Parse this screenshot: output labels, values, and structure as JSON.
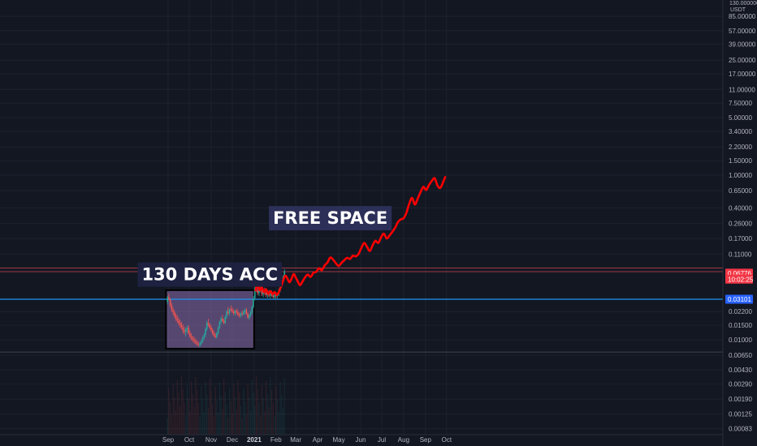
{
  "chart_data": {
    "type": "line",
    "title": "",
    "xlabel": "",
    "ylabel": "",
    "y_scale": "log",
    "ylim": [
      0.00075,
      130
    ],
    "grid": true,
    "currency": "USDT",
    "top_price_label": "130.000000",
    "x_ticks": [
      {
        "label": "Sep",
        "x": "2020-09-01"
      },
      {
        "label": "Oct",
        "x": "2020-10-01"
      },
      {
        "label": "Nov",
        "x": "2020-11-01"
      },
      {
        "label": "Dec",
        "x": "2020-12-01"
      },
      {
        "label": "2021",
        "x": "2021-01-01",
        "emphasis": true
      },
      {
        "label": "Feb",
        "x": "2021-02-01"
      },
      {
        "label": "Mar",
        "x": "2021-03-01"
      },
      {
        "label": "Apr",
        "x": "2021-04-01"
      },
      {
        "label": "May",
        "x": "2021-05-01"
      },
      {
        "label": "Jun",
        "x": "2021-06-01"
      },
      {
        "label": "Jul",
        "x": "2021-07-01"
      },
      {
        "label": "Aug",
        "x": "2021-08-01"
      },
      {
        "label": "Sep",
        "x": "2021-09-01"
      },
      {
        "label": "Oct",
        "x": "2021-10-01"
      }
    ],
    "y_ticks": [
      {
        "label": "85.00000",
        "value": 85
      },
      {
        "label": "57.00000",
        "value": 57
      },
      {
        "label": "39.00000",
        "value": 39
      },
      {
        "label": "25.00000",
        "value": 25
      },
      {
        "label": "17.00000",
        "value": 17
      },
      {
        "label": "11.00000",
        "value": 11
      },
      {
        "label": "7.50000",
        "value": 7.5
      },
      {
        "label": "5.00000",
        "value": 5
      },
      {
        "label": "3.40000",
        "value": 3.4
      },
      {
        "label": "2.20000",
        "value": 2.2
      },
      {
        "label": "1.50000",
        "value": 1.5
      },
      {
        "label": "1.00000",
        "value": 1.0
      },
      {
        "label": "0.65000",
        "value": 0.65
      },
      {
        "label": "0.40000",
        "value": 0.4
      },
      {
        "label": "0.26000",
        "value": 0.26
      },
      {
        "label": "0.17000",
        "value": 0.17
      },
      {
        "label": "0.11000",
        "value": 0.11
      },
      {
        "label": "0.02200",
        "value": 0.022
      },
      {
        "label": "0.01500",
        "value": 0.015
      },
      {
        "label": "0.01000",
        "value": 0.01
      },
      {
        "label": "0.00650",
        "value": 0.0065
      },
      {
        "label": "0.00430",
        "value": 0.0043
      },
      {
        "label": "0.00290",
        "value": 0.0029
      },
      {
        "label": "0.00190",
        "value": 0.0019
      },
      {
        "label": "0.00125",
        "value": 0.00125
      },
      {
        "label": "0.00083",
        "value": 0.00083
      }
    ],
    "price_badges": [
      {
        "label": "0.06776",
        "value": 0.0645,
        "color": "#f23645"
      },
      {
        "label": "10:02:25",
        "value": 0.0545,
        "color": "#f23645"
      },
      {
        "label": "0.03101",
        "value": 0.0311,
        "color": "#2962ff"
      }
    ],
    "horizontal_lines": [
      {
        "name": "support",
        "value": 0.0311,
        "color": "#2196f3"
      },
      {
        "name": "range-top",
        "value": 0.0745,
        "color": "#f7525f"
      },
      {
        "name": "range-mid",
        "value": 0.0672,
        "color": "#f7525f"
      },
      {
        "name": "range-low",
        "value": 0.0071,
        "color": "#5d606b"
      }
    ],
    "accumulation_box": {
      "x_start": "2020-08-29",
      "x_end": "2021-01-01",
      "y_low": 0.0078,
      "y_high": 0.04,
      "fill": "#8e6fb0",
      "border": "#000000"
    },
    "annotations": [
      {
        "text": "130 DAYS ACC",
        "x": "2020-10-30",
        "y": 0.062,
        "bg": "#1e2240"
      },
      {
        "text": "FREE SPACE",
        "x": "2021-04-19",
        "y": 0.3,
        "bg": "#2c2f57"
      }
    ],
    "candles": {
      "up_color": "#26a69a",
      "down_color": "#ef5350",
      "series": [
        [
          "2020-08-31",
          0.029,
          0.034,
          0.027,
          0.033
        ],
        [
          "2020-09-02",
          0.033,
          0.036,
          0.03,
          0.031
        ],
        [
          "2020-09-04",
          0.031,
          0.032,
          0.025,
          0.026
        ],
        [
          "2020-09-06",
          0.026,
          0.028,
          0.022,
          0.023
        ],
        [
          "2020-09-08",
          0.023,
          0.025,
          0.02,
          0.0215
        ],
        [
          "2020-09-10",
          0.0215,
          0.023,
          0.0185,
          0.0195
        ],
        [
          "2020-09-12",
          0.0195,
          0.021,
          0.017,
          0.018
        ],
        [
          "2020-09-14",
          0.018,
          0.02,
          0.016,
          0.017
        ],
        [
          "2020-09-16",
          0.017,
          0.0185,
          0.015,
          0.016
        ],
        [
          "2020-09-18",
          0.016,
          0.0175,
          0.014,
          0.015
        ],
        [
          "2020-09-20",
          0.015,
          0.0165,
          0.0135,
          0.014
        ],
        [
          "2020-09-22",
          0.014,
          0.0155,
          0.012,
          0.013
        ],
        [
          "2020-09-24",
          0.013,
          0.0145,
          0.0115,
          0.0125
        ],
        [
          "2020-09-26",
          0.0125,
          0.014,
          0.011,
          0.0135
        ],
        [
          "2020-09-28",
          0.0135,
          0.015,
          0.012,
          0.014
        ],
        [
          "2020-09-30",
          0.014,
          0.015,
          0.0115,
          0.012
        ],
        [
          "2020-10-02",
          0.012,
          0.013,
          0.0105,
          0.011
        ],
        [
          "2020-10-04",
          0.011,
          0.012,
          0.0098,
          0.0105
        ],
        [
          "2020-10-06",
          0.0105,
          0.0112,
          0.0094,
          0.01
        ],
        [
          "2020-10-08",
          0.01,
          0.0108,
          0.009,
          0.0096
        ],
        [
          "2020-10-10",
          0.0096,
          0.0104,
          0.0088,
          0.0092
        ],
        [
          "2020-10-12",
          0.0092,
          0.0099,
          0.0085,
          0.0088
        ],
        [
          "2020-10-14",
          0.0088,
          0.0096,
          0.0082,
          0.0086
        ],
        [
          "2020-10-16",
          0.0086,
          0.0094,
          0.0081,
          0.009
        ],
        [
          "2020-10-18",
          0.009,
          0.01,
          0.0086,
          0.0096
        ],
        [
          "2020-10-20",
          0.0096,
          0.011,
          0.0092,
          0.0106
        ],
        [
          "2020-10-22",
          0.0106,
          0.012,
          0.01,
          0.0115
        ],
        [
          "2020-10-24",
          0.0115,
          0.014,
          0.0108,
          0.0135
        ],
        [
          "2020-10-26",
          0.0135,
          0.017,
          0.0128,
          0.016
        ],
        [
          "2020-10-28",
          0.016,
          0.018,
          0.0145,
          0.015
        ],
        [
          "2020-10-30",
          0.015,
          0.016,
          0.0135,
          0.014
        ],
        [
          "2020-11-01",
          0.014,
          0.015,
          0.0125,
          0.013
        ],
        [
          "2020-11-03",
          0.013,
          0.0138,
          0.0115,
          0.012
        ],
        [
          "2020-11-05",
          0.012,
          0.0128,
          0.0108,
          0.0112
        ],
        [
          "2020-11-07",
          0.0112,
          0.012,
          0.0104,
          0.0108
        ],
        [
          "2020-11-09",
          0.0108,
          0.0125,
          0.0104,
          0.012
        ],
        [
          "2020-11-11",
          0.012,
          0.0145,
          0.0115,
          0.014
        ],
        [
          "2020-11-13",
          0.014,
          0.017,
          0.0135,
          0.0165
        ],
        [
          "2020-11-15",
          0.0165,
          0.019,
          0.0155,
          0.018
        ],
        [
          "2020-11-17",
          0.018,
          0.02,
          0.0165,
          0.017
        ],
        [
          "2020-11-19",
          0.017,
          0.018,
          0.0155,
          0.016
        ],
        [
          "2020-11-21",
          0.016,
          0.0195,
          0.0155,
          0.019
        ],
        [
          "2020-11-23",
          0.019,
          0.023,
          0.018,
          0.022
        ],
        [
          "2020-11-25",
          0.022,
          0.025,
          0.02,
          0.021
        ],
        [
          "2020-11-27",
          0.021,
          0.024,
          0.0195,
          0.0235
        ],
        [
          "2020-11-29",
          0.0235,
          0.026,
          0.022,
          0.023
        ],
        [
          "2020-12-01",
          0.023,
          0.025,
          0.021,
          0.022
        ],
        [
          "2020-12-03",
          0.022,
          0.0235,
          0.02,
          0.021
        ],
        [
          "2020-12-05",
          0.021,
          0.023,
          0.0195,
          0.0225
        ],
        [
          "2020-12-07",
          0.0225,
          0.024,
          0.0205,
          0.0215
        ],
        [
          "2020-12-09",
          0.0215,
          0.023,
          0.0195,
          0.02
        ],
        [
          "2020-12-11",
          0.02,
          0.0215,
          0.0185,
          0.0195
        ],
        [
          "2020-12-13",
          0.0195,
          0.0215,
          0.0185,
          0.021
        ],
        [
          "2020-12-15",
          0.021,
          0.0225,
          0.0195,
          0.0205
        ],
        [
          "2020-12-17",
          0.0205,
          0.023,
          0.0195,
          0.022
        ],
        [
          "2020-12-19",
          0.022,
          0.024,
          0.0205,
          0.023
        ],
        [
          "2020-12-21",
          0.023,
          0.0245,
          0.02,
          0.0205
        ],
        [
          "2020-12-23",
          0.0205,
          0.0215,
          0.018,
          0.0185
        ],
        [
          "2020-12-25",
          0.0185,
          0.0205,
          0.0175,
          0.02
        ],
        [
          "2020-12-27",
          0.02,
          0.0225,
          0.019,
          0.0215
        ],
        [
          "2020-12-29",
          0.0215,
          0.026,
          0.0205,
          0.025
        ],
        [
          "2020-12-31",
          0.025,
          0.034,
          0.024,
          0.032
        ],
        [
          "2021-01-02",
          0.032,
          0.045,
          0.03,
          0.042
        ],
        [
          "2021-01-04",
          0.042,
          0.052,
          0.038,
          0.04
        ],
        [
          "2021-01-06",
          0.04,
          0.046,
          0.035,
          0.037
        ],
        [
          "2021-01-08",
          0.037,
          0.044,
          0.034,
          0.042
        ],
        [
          "2021-01-10",
          0.042,
          0.048,
          0.038,
          0.04
        ],
        [
          "2021-01-12",
          0.04,
          0.043,
          0.034,
          0.036
        ],
        [
          "2021-01-14",
          0.036,
          0.041,
          0.033,
          0.039
        ],
        [
          "2021-01-16",
          0.039,
          0.043,
          0.035,
          0.037
        ],
        [
          "2021-01-18",
          0.037,
          0.04,
          0.033,
          0.035
        ],
        [
          "2021-01-20",
          0.035,
          0.039,
          0.032,
          0.037
        ],
        [
          "2021-01-22",
          0.037,
          0.04,
          0.033,
          0.0345
        ],
        [
          "2021-01-24",
          0.0345,
          0.038,
          0.032,
          0.036
        ],
        [
          "2021-01-26",
          0.036,
          0.0395,
          0.0335,
          0.0345
        ],
        [
          "2021-01-28",
          0.0345,
          0.037,
          0.032,
          0.033
        ],
        [
          "2021-01-30",
          0.033,
          0.036,
          0.031,
          0.035
        ],
        [
          "2021-02-01",
          0.035,
          0.038,
          0.032,
          0.034
        ],
        [
          "2021-02-03",
          0.034,
          0.037,
          0.032,
          0.036
        ],
        [
          "2021-02-05",
          0.036,
          0.042,
          0.034,
          0.04
        ],
        [
          "2021-02-07",
          0.04,
          0.047,
          0.038,
          0.045
        ],
        [
          "2021-02-09",
          0.045,
          0.054,
          0.043,
          0.052
        ],
        [
          "2021-02-11",
          0.052,
          0.061,
          0.049,
          0.058
        ],
        [
          "2021-02-13",
          0.058,
          0.072,
          0.056,
          0.0678
        ]
      ]
    },
    "projection_path": {
      "color": "#ff0000",
      "x": [
        "2021-01-03",
        "2021-01-06",
        "2021-01-09",
        "2021-01-12",
        "2021-01-15",
        "2021-01-18",
        "2021-01-21",
        "2021-01-24",
        "2021-01-27",
        "2021-01-30",
        "2021-02-02",
        "2021-02-05",
        "2021-02-08",
        "2021-02-11",
        "2021-02-14",
        "2021-02-17",
        "2021-02-20",
        "2021-02-23",
        "2021-02-26",
        "2021-03-01",
        "2021-03-04",
        "2021-03-07",
        "2021-03-10",
        "2021-03-14",
        "2021-03-18",
        "2021-03-22",
        "2021-03-26",
        "2021-03-30",
        "2021-04-03",
        "2021-04-07",
        "2021-04-11",
        "2021-04-15",
        "2021-04-19",
        "2021-04-23",
        "2021-04-27",
        "2021-05-01",
        "2021-05-05",
        "2021-05-09",
        "2021-05-13",
        "2021-05-17",
        "2021-05-21",
        "2021-05-25",
        "2021-05-29",
        "2021-06-02",
        "2021-06-06",
        "2021-06-10",
        "2021-06-14",
        "2021-06-18",
        "2021-06-22",
        "2021-06-26",
        "2021-06-30",
        "2021-07-04",
        "2021-07-08",
        "2021-07-12",
        "2021-07-16",
        "2021-07-20",
        "2021-07-24",
        "2021-07-28",
        "2021-08-01",
        "2021-08-05",
        "2021-08-09",
        "2021-08-13",
        "2021-08-17",
        "2021-08-21",
        "2021-08-25",
        "2021-08-29",
        "2021-09-02",
        "2021-09-06",
        "2021-09-10",
        "2021-09-14",
        "2021-09-18",
        "2021-09-22",
        "2021-09-26",
        "2021-09-29"
      ],
      "y": [
        0.04,
        0.047,
        0.04,
        0.043,
        0.038,
        0.041,
        0.036,
        0.039,
        0.036,
        0.038,
        0.035,
        0.038,
        0.044,
        0.052,
        0.06,
        0.056,
        0.05,
        0.055,
        0.063,
        0.057,
        0.051,
        0.046,
        0.05,
        0.057,
        0.062,
        0.058,
        0.065,
        0.067,
        0.074,
        0.07,
        0.08,
        0.087,
        0.1,
        0.094,
        0.085,
        0.079,
        0.086,
        0.093,
        0.099,
        0.096,
        0.105,
        0.103,
        0.11,
        0.13,
        0.15,
        0.135,
        0.12,
        0.14,
        0.16,
        0.15,
        0.175,
        0.195,
        0.17,
        0.185,
        0.205,
        0.23,
        0.27,
        0.29,
        0.3,
        0.35,
        0.45,
        0.53,
        0.44,
        0.52,
        0.62,
        0.72,
        0.66,
        0.76,
        0.85,
        0.92,
        0.75,
        0.7,
        0.82,
        0.95
      ]
    }
  }
}
